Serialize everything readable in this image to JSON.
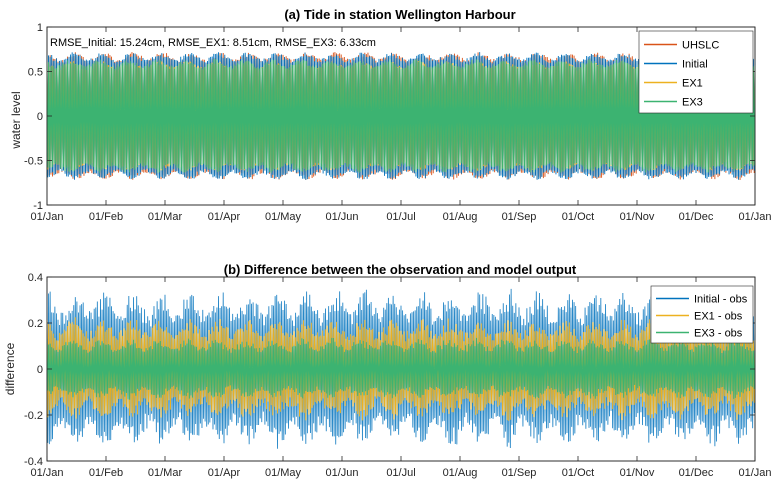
{
  "chart_data": [
    {
      "type": "line",
      "title": "(a) Tide in station Wellington Harbour",
      "xlabel": "",
      "ylabel": "water level",
      "ylim": [
        -1,
        1
      ],
      "yticks": [
        -1,
        -0.5,
        0,
        0.5,
        1
      ],
      "ytick_labels": [
        "-1",
        "-0.5",
        "0",
        "0.5",
        "1"
      ],
      "xtick_labels": [
        "01/Jan",
        "01/Feb",
        "01/Mar",
        "01/Apr",
        "01/May",
        "01/Jun",
        "01/Jul",
        "01/Aug",
        "01/Sep",
        "01/Oct",
        "01/Nov",
        "01/Dec",
        "01/Jan"
      ],
      "annotation": "RMSE_Initial: 15.24cm, RMSE_EX1: 8.51cm, RMSE_EX3: 6.33cm",
      "legend_position": "top-right",
      "series": [
        {
          "name": "UHSLC",
          "color": "#D95319",
          "envelope_max": 0.72,
          "envelope_min": -0.7
        },
        {
          "name": "Initial",
          "color": "#0072BD",
          "envelope_max": 0.66,
          "envelope_min": -0.72
        },
        {
          "name": "EX1",
          "color": "#EDB120",
          "envelope_max": 0.62,
          "envelope_min": -0.62
        },
        {
          "name": "EX3",
          "color": "#3CB371",
          "envelope_max": 0.64,
          "envelope_min": -0.62
        }
      ]
    },
    {
      "type": "line",
      "title": "(b) Difference between the observation and model output",
      "xlabel": "",
      "ylabel": "difference",
      "ylim": [
        -0.4,
        0.4
      ],
      "yticks": [
        -0.4,
        -0.2,
        0,
        0.2,
        0.4
      ],
      "ytick_labels": [
        "-0.4",
        "-0.2",
        "0",
        "0.2",
        "0.4"
      ],
      "xtick_labels": [
        "01/Jan",
        "01/Feb",
        "01/Mar",
        "01/Apr",
        "01/May",
        "01/Jun",
        "01/Jul",
        "01/Aug",
        "01/Sep",
        "01/Oct",
        "01/Nov",
        "01/Dec",
        "01/Jan"
      ],
      "legend_position": "top-right",
      "series": [
        {
          "name": "Initial - obs",
          "color": "#0072BD",
          "envelope_max": 0.31,
          "envelope_min": -0.31
        },
        {
          "name": "EX1 - obs",
          "color": "#EDB120",
          "envelope_max": 0.18,
          "envelope_min": -0.2
        },
        {
          "name": "EX3 - obs",
          "color": "#3CB371",
          "envelope_max": 0.12,
          "envelope_min": -0.12
        }
      ]
    }
  ]
}
